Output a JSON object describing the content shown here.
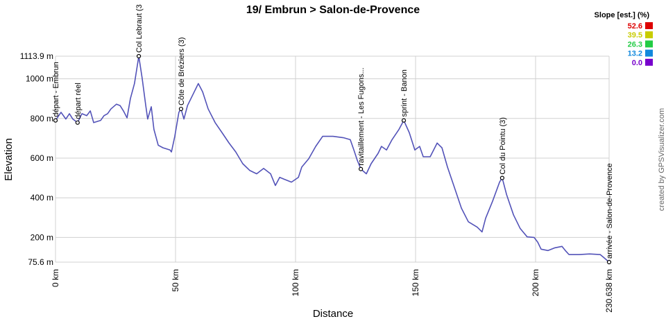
{
  "chart_data": {
    "type": "line",
    "title": "19/ Embrun > Salon-de-Provence",
    "x_label": "Distance",
    "y_label": "Elevation",
    "credit": "created by GPSVisualizer.com",
    "grid": true,
    "xlim": [
      0,
      230.638
    ],
    "ylim": [
      75.6,
      1113.9
    ],
    "xticks": [
      {
        "value": 0,
        "label": "0 km"
      },
      {
        "value": 50,
        "label": "50 km"
      },
      {
        "value": 100,
        "label": "100 km"
      },
      {
        "value": 150,
        "label": "150 km"
      },
      {
        "value": 200,
        "label": "200 km"
      },
      {
        "value": 230.638,
        "label": "230.638 km"
      }
    ],
    "yticks": [
      {
        "value": 75.6,
        "label": "75.6 m"
      },
      {
        "value": 200,
        "label": "200 m"
      },
      {
        "value": 400,
        "label": "400 m"
      },
      {
        "value": 600,
        "label": "600 m"
      },
      {
        "value": 800,
        "label": "800 m"
      },
      {
        "value": 1000,
        "label": "1000 m"
      },
      {
        "value": 1113.9,
        "label": "1113.9 m"
      }
    ],
    "x": [
      0,
      2.3,
      4.3,
      5.8,
      7.2,
      9.2,
      11.0,
      13.0,
      14.5,
      15.9,
      18.8,
      20.2,
      21.7,
      23.1,
      25.4,
      26.9,
      28.3,
      29.8,
      31.2,
      32.9,
      34.7,
      36.1,
      37.6,
      38.4,
      39.9,
      41.0,
      42.8,
      44.8,
      47.7,
      48.3,
      49.7,
      51.4,
      52.3,
      53.5,
      55.0,
      57.8,
      59.5,
      61.3,
      63.6,
      66.5,
      69.4,
      72.3,
      75.1,
      78.0,
      80.9,
      83.8,
      86.7,
      89.6,
      91.6,
      93.4,
      95.4,
      98.3,
      101.2,
      102.6,
      105.5,
      108.4,
      111.3,
      115.6,
      119.9,
      122.8,
      124.3,
      125.7,
      127.2,
      129.5,
      131.5,
      134.4,
      135.8,
      137.9,
      140.2,
      143.1,
      145.1,
      147.4,
      149.7,
      151.7,
      153.2,
      156.1,
      159.0,
      161.0,
      163.3,
      166.2,
      169.1,
      172.0,
      175.7,
      177.7,
      179.2,
      182.1,
      185.0,
      186.1,
      187.9,
      190.8,
      193.6,
      196.5,
      199.4,
      200.9,
      202.3,
      205.2,
      208.1,
      211.0,
      212.4,
      213.9,
      218.2,
      222.5,
      226.9,
      228.3,
      230.638
    ],
    "series": [
      {
        "color": "#5252b8",
        "values": [
          790,
          831,
          797,
          824,
          797,
          779,
          824,
          814,
          838,
          779,
          790,
          814,
          824,
          848,
          872,
          865,
          838,
          803,
          900,
          976,
          1113.9,
          1003,
          865,
          797,
          859,
          745,
          665,
          652,
          641,
          631,
          710,
          831,
          848,
          797,
          865,
          934,
          976,
          934,
          848,
          779,
          728,
          676,
          631,
          572,
          538,
          521,
          548,
          521,
          462,
          503,
          493,
          479,
          503,
          555,
          597,
          659,
          710,
          710,
          703,
          693,
          641,
          590,
          545,
          521,
          572,
          624,
          659,
          641,
          693,
          745,
          790,
          728,
          641,
          659,
          607,
          607,
          676,
          652,
          555,
          452,
          348,
          279,
          252,
          228,
          297,
          383,
          479,
          500,
          417,
          314,
          245,
          203,
          200,
          176,
          141,
          134,
          148,
          155,
          134,
          114,
          114,
          117,
          114,
          100,
          75.6
        ]
      }
    ],
    "markers": [
      {
        "x": 0,
        "y": 790,
        "label": "départ - Embrun"
      },
      {
        "x": 9.2,
        "y": 779,
        "label": "départ réel"
      },
      {
        "x": 34.7,
        "y": 1113.9,
        "label": "Col Lebraut (3"
      },
      {
        "x": 52.3,
        "y": 848,
        "label": "Côte de Bréziers (3)"
      },
      {
        "x": 127.2,
        "y": 545,
        "label": "ravitaillement - Les Fugons..."
      },
      {
        "x": 145.1,
        "y": 790,
        "label": "sprint - Banon"
      },
      {
        "x": 186.1,
        "y": 500,
        "label": "Col du Pointu (3)"
      },
      {
        "x": 230.638,
        "y": 75.6,
        "label": "arrivée - Salon-de-Provence"
      }
    ],
    "slope_legend": {
      "title": "Slope [est.] (%)",
      "items": [
        {
          "label": "52.6",
          "color": "#dd0000"
        },
        {
          "label": "39.5",
          "color": "#c8cc00"
        },
        {
          "label": "26.3",
          "color": "#22cc44"
        },
        {
          "label": "13.2",
          "color": "#1188dd"
        },
        {
          "label": "0.0",
          "color": "#7700cc"
        }
      ]
    }
  }
}
